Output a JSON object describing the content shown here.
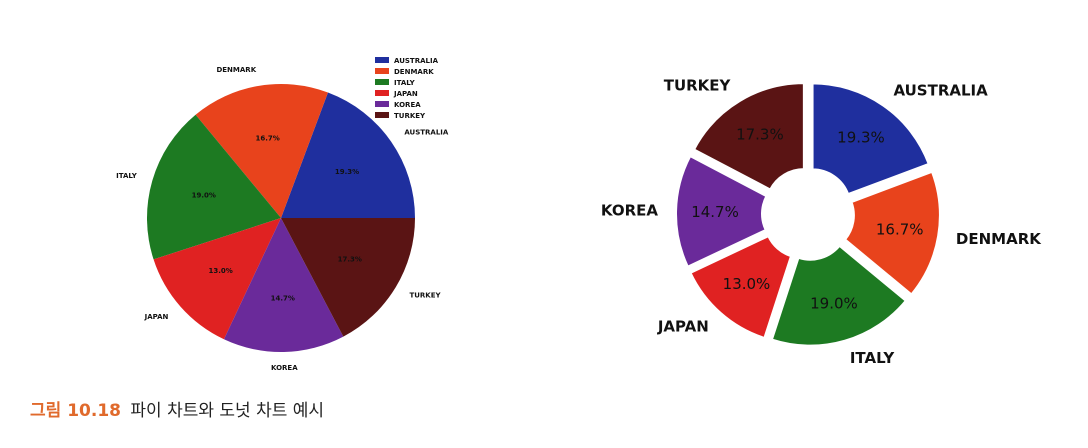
{
  "chart_data": [
    {
      "type": "pie",
      "categories": [
        "AUSTRALIA",
        "DENMARK",
        "ITALY",
        "JAPAN",
        "KOREA",
        "TURKEY"
      ],
      "values": [
        19.3,
        16.7,
        19.0,
        13.0,
        14.7,
        17.3
      ],
      "labels": [
        "19.3%",
        "16.7%",
        "19.0%",
        "13.0%",
        "14.7%",
        "17.3%"
      ],
      "colors": [
        "#1f2f9e",
        "#e8431c",
        "#1d7a22",
        "#e02222",
        "#6a2a9a",
        "#5a1414"
      ],
      "legend": [
        "AUSTRALIA",
        "DENMARK",
        "ITALY",
        "JAPAN",
        "KOREA",
        "TURKEY"
      ],
      "legend_position": "top-right"
    },
    {
      "type": "pie",
      "style": "donut-exploded",
      "categories": [
        "AUSTRALIA",
        "DENMARK",
        "ITALY",
        "JAPAN",
        "KOREA",
        "TURKEY"
      ],
      "values": [
        19.3,
        16.7,
        19.0,
        13.0,
        14.7,
        17.3
      ],
      "labels": [
        "19.3%",
        "16.7%",
        "19.0%",
        "13.0%",
        "14.7%",
        "17.3%"
      ],
      "colors": [
        "#1f2f9e",
        "#e8431c",
        "#1d7a22",
        "#e02222",
        "#6a2a9a",
        "#5a1414"
      ]
    }
  ],
  "caption": {
    "figure_number": "그림 10.18",
    "text": "파이 차트와 도넛 차트 예시"
  }
}
